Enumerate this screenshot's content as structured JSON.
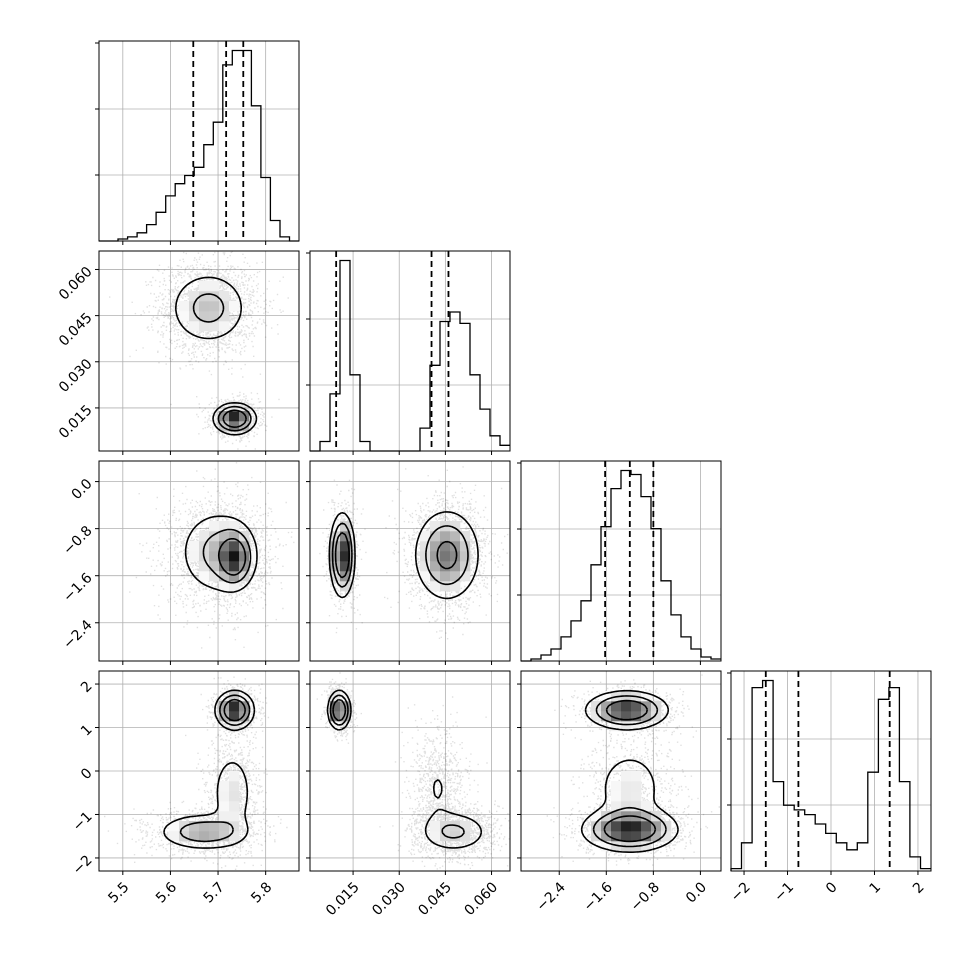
{
  "chart_data": {
    "type": "corner",
    "ndim": 4,
    "parameters": [
      "",
      "",
      "",
      ""
    ],
    "axis_ranges": [
      [
        5.45,
        5.87
      ],
      [
        0.001,
        0.066
      ],
      [
        -3.05,
        0.35
      ],
      [
        -2.3,
        2.3
      ]
    ],
    "ticks": [
      {
        "values": [
          5.5,
          5.6,
          5.7,
          5.8
        ],
        "labels": [
          "5.5",
          "5.6",
          "5.7",
          "5.8"
        ]
      },
      {
        "values": [
          0.015,
          0.03,
          0.045,
          0.06
        ],
        "labels": [
          "0.015",
          "0.030",
          "0.045",
          "0.060"
        ]
      },
      {
        "values": [
          -2.4,
          -1.6,
          -0.8,
          0.0
        ],
        "labels": [
          "−2.4",
          "−1.6",
          "−0.8",
          "0.0"
        ]
      },
      {
        "values": [
          -2,
          -1,
          0,
          1,
          2
        ],
        "labels": [
          "−2",
          "−1",
          "0",
          "1",
          "2"
        ]
      }
    ],
    "grid": true,
    "quantiles": [
      [
        5.648,
        5.717,
        5.753
      ],
      [
        0.0095,
        0.0405,
        0.046
      ],
      [
        -1.62,
        -1.2,
        -0.8
      ],
      [
        -1.5,
        -0.75,
        1.35
      ]
    ],
    "histograms": [
      {
        "bins": [
          5.45,
          5.87
        ],
        "counts": [
          0.0,
          0.0,
          0.01,
          0.02,
          0.04,
          0.08,
          0.14,
          0.22,
          0.28,
          0.32,
          0.36,
          0.47,
          0.58,
          0.86,
          0.93,
          0.93,
          0.66,
          0.31,
          0.1,
          0.02,
          0.0
        ]
      },
      {
        "bins": [
          0.001,
          0.066
        ],
        "counts": [
          0.0,
          0.05,
          0.3,
          1.0,
          0.4,
          0.05,
          0.0,
          0.0,
          0.0,
          0.0,
          0.0,
          0.12,
          0.45,
          0.68,
          0.73,
          0.67,
          0.4,
          0.22,
          0.08,
          0.03
        ]
      },
      {
        "bins": [
          -3.05,
          0.35
        ],
        "counts": [
          0.0,
          0.01,
          0.03,
          0.06,
          0.12,
          0.2,
          0.3,
          0.48,
          0.67,
          0.86,
          0.95,
          0.93,
          0.82,
          0.66,
          0.4,
          0.23,
          0.12,
          0.06,
          0.02,
          0.01
        ]
      },
      {
        "bins": [
          -2.3,
          2.3
        ],
        "counts": [
          0.01,
          0.12,
          0.78,
          0.81,
          0.38,
          0.28,
          0.26,
          0.24,
          0.2,
          0.16,
          0.12,
          0.09,
          0.12,
          0.42,
          0.73,
          0.78,
          0.38,
          0.06,
          0.01
        ]
      }
    ],
    "modes": {
      "1-0": [
        {
          "mx": 5.68,
          "my": 0.0475,
          "sx": 0.045,
          "sy": 0.0065,
          "w": 0.67
        },
        {
          "mx": 5.735,
          "my": 0.0115,
          "sx": 0.022,
          "sy": 0.0025,
          "w": 0.33
        }
      ],
      "2-0": [
        {
          "mx": 5.7,
          "my": -1.2,
          "sx": 0.045,
          "sy": 0.4,
          "w": 0.65
        },
        {
          "mx": 5.735,
          "my": -1.3,
          "sx": 0.02,
          "sy": 0.25,
          "w": 0.35
        }
      ],
      "2-1": [
        {
          "mx": 0.0115,
          "my": -1.25,
          "sx": 0.002,
          "sy": 0.35,
          "w": 0.33
        },
        {
          "mx": 0.0455,
          "my": -1.25,
          "sx": 0.0055,
          "sy": 0.4,
          "w": 0.67
        }
      ],
      "3-0": [
        {
          "mx": 5.735,
          "my": 1.4,
          "sx": 0.02,
          "sy": 0.22,
          "w": 0.33
        },
        {
          "mx": 5.67,
          "my": -1.4,
          "sx": 0.05,
          "sy": 0.22,
          "w": 0.4
        },
        {
          "mx": 5.73,
          "my": -0.5,
          "sx": 0.025,
          "sy": 0.55,
          "w": 0.27
        }
      ],
      "3-1": [
        {
          "mx": 0.0105,
          "my": 1.4,
          "sx": 0.0018,
          "sy": 0.22,
          "w": 0.33
        },
        {
          "mx": 0.048,
          "my": -1.4,
          "sx": 0.006,
          "sy": 0.25,
          "w": 0.42
        },
        {
          "mx": 0.0425,
          "my": -0.4,
          "sx": 0.004,
          "sy": 0.6,
          "w": 0.25
        }
      ],
      "3-2": [
        {
          "mx": -1.25,
          "my": 1.4,
          "sx": 0.35,
          "sy": 0.22,
          "w": 0.33
        },
        {
          "mx": -1.2,
          "my": -1.35,
          "sx": 0.4,
          "sy": 0.25,
          "w": 0.45
        },
        {
          "mx": -1.2,
          "my": -0.4,
          "sx": 0.35,
          "sy": 0.55,
          "w": 0.22
        }
      ]
    }
  }
}
